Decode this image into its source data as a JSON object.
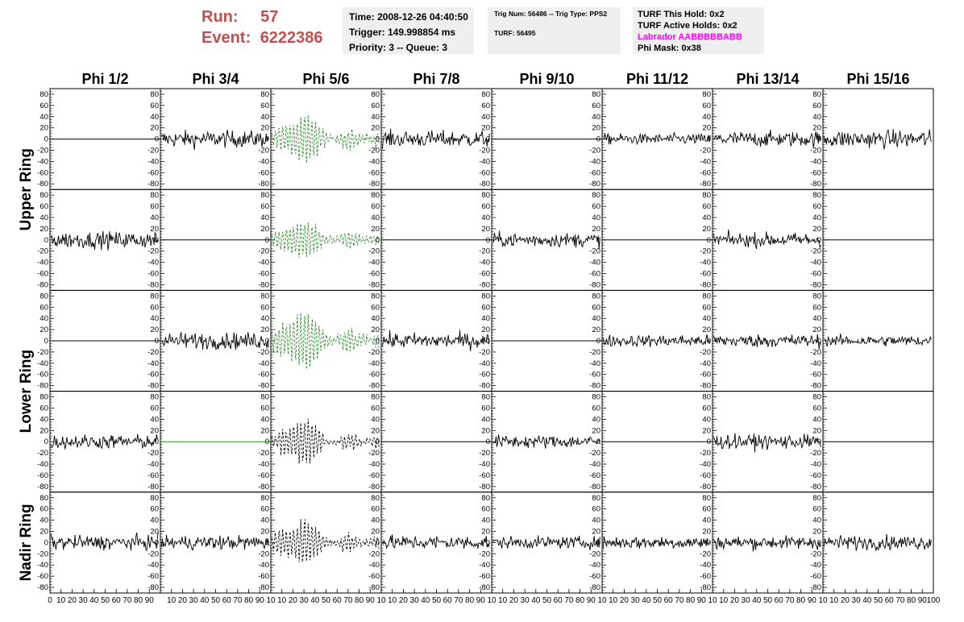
{
  "header": {
    "run_label": "Run:",
    "run_value": "57",
    "event_label": "Event:",
    "event_value": "6222386",
    "time": "Time: 2008-12-26 04:40:50",
    "trigger": "Trigger: 149.998854 ms",
    "priority": "Priority: 3 -- Queue: 3",
    "trig_num": "Trig Num: 56486 -- Trig Type: PPS2",
    "turf": "TURF: 56495",
    "turf_hold": "TURF This Hold: 0x2",
    "turf_active": "TURF Active Holds: 0x2",
    "labrador": "Labrador AABBBBBABB",
    "phi_mask": "Phi Mask: 0x38"
  },
  "colors": {
    "accent": "#c0504d",
    "labrador": "#ff00ff",
    "green_trace": "#2e8b2e",
    "black_trace": "#000000",
    "info_bg": "#efefef"
  },
  "chart_data": {
    "type": "line",
    "column_labels": [
      "Phi 1/2",
      "Phi 3/4",
      "Phi 5/6",
      "Phi 7/8",
      "Phi 9/10",
      "Phi 11/12",
      "Phi 13/14",
      "Phi 15/16"
    ],
    "row_group_labels": [
      "Upper Ring",
      "Lower Ring",
      "Nadir Ring"
    ],
    "rows": 5,
    "xlim": [
      0,
      100
    ],
    "ylim": [
      -90,
      90
    ],
    "y_ticks": [
      80,
      60,
      40,
      20,
      0,
      -20,
      -40,
      -60,
      -80
    ],
    "x_tick_labels": [
      "0",
      "10",
      "20",
      "30",
      "40",
      "50",
      "60",
      "70",
      "80",
      "90",
      "100"
    ],
    "x_tick_labels_inner": [
      "10",
      "20",
      "30",
      "40",
      "50",
      "60",
      "70",
      "80",
      "90",
      "10"
    ],
    "panels": [
      [
        "flat",
        "noise:14",
        "dash:green:20",
        "noise:14",
        "flat",
        "noise:9",
        "noise:13",
        "noise:15"
      ],
      [
        "noise:14",
        "flat",
        "dash:green:16",
        "flat",
        "noise:12",
        "flat",
        "noise:12",
        "flat"
      ],
      [
        "flat",
        "noise:14",
        "dash:green:24",
        "noise:13",
        "flat",
        "noise:10",
        "noise:11",
        "noise:9"
      ],
      [
        "noise:12",
        "flat:green",
        "dash:black:18",
        "flat",
        "noise:11",
        "flat",
        "noise:12",
        "flat"
      ],
      [
        "noise:12",
        "noise:12",
        "dash:black:18",
        "noise:12",
        "noise:10",
        "noise:11",
        "noise:11",
        "noise:12"
      ]
    ]
  }
}
